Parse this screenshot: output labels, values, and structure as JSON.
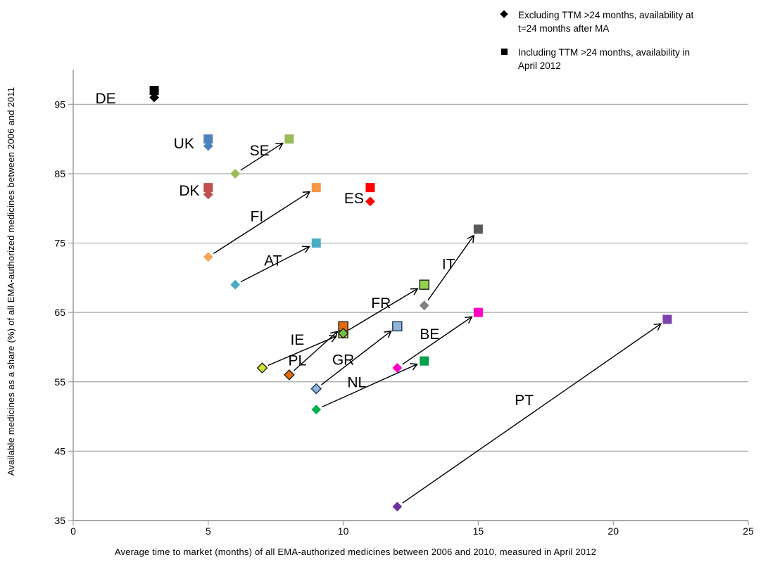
{
  "legend": {
    "items": [
      {
        "marker": "diamond",
        "line1": "Excluding TTM >24 months, availability at",
        "line2": "t=24 months after MA"
      },
      {
        "marker": "square",
        "line1": "Including TTM >24 months, availability in",
        "line2": "April 2012"
      }
    ]
  },
  "axes": {
    "x": {
      "title": "Average time to market (months) of all EMA-authorized medicines between 2006 and 2010, measured in April 2012"
    },
    "y": {
      "title": "Available medicines as a share (%) of all EMA-authorized medicines between 2006 and 2011"
    }
  },
  "colors": {
    "text": "#000000",
    "grid": "#A6A6A6",
    "axis": "#9B9B9B",
    "arrow": "#000000",
    "legend_marker": "#000000"
  },
  "chart_data": {
    "type": "scatter",
    "title": "",
    "xlabel": "Average time to market (months) of all EMA-authorized medicines between 2006 and 2010, measured in April 2012",
    "ylabel": "Available medicines as a share (%) of all EMA-authorized medicines between 2006 and 2011",
    "xlim": [
      0,
      25
    ],
    "ylim": [
      35,
      100
    ],
    "x_ticks": [
      0,
      5,
      10,
      15,
      20,
      25
    ],
    "y_ticks": [
      35,
      45,
      55,
      65,
      75,
      85,
      95
    ],
    "grid": "horizontal",
    "legend_position": "top-right",
    "series": [
      {
        "name": "Excluding TTM >24 months, availability at t=24 months after MA",
        "marker": "diamond"
      },
      {
        "name": "Including TTM >24 months, availability in April 2012",
        "marker": "square"
      }
    ],
    "countries": [
      {
        "code": "DE",
        "diamond": {
          "x": 3,
          "y": 96
        },
        "square": {
          "x": 3,
          "y": 97
        },
        "diamond_color": "#000000",
        "square_color": "#000000",
        "stroke": null,
        "arrow": false,
        "label": {
          "x": 1.2,
          "y": 95.8
        }
      },
      {
        "code": "UK",
        "diamond": {
          "x": 5,
          "y": 89
        },
        "square": {
          "x": 5,
          "y": 90
        },
        "diamond_color": "#4F81BD",
        "square_color": "#4F81BD",
        "stroke": null,
        "arrow": false,
        "label": {
          "x": 4.1,
          "y": 89.3
        }
      },
      {
        "code": "SE",
        "diamond": {
          "x": 6,
          "y": 85
        },
        "square": {
          "x": 8,
          "y": 90
        },
        "diamond_color": "#9BBB59",
        "square_color": "#9BBB59",
        "stroke": null,
        "arrow": true,
        "label": {
          "x": 6.9,
          "y": 88.3
        }
      },
      {
        "code": "DK",
        "diamond": {
          "x": 5,
          "y": 82
        },
        "square": {
          "x": 5,
          "y": 83
        },
        "diamond_color": "#C0504D",
        "square_color": "#C0504D",
        "stroke": null,
        "arrow": false,
        "label": {
          "x": 4.3,
          "y": 82.5
        }
      },
      {
        "code": "ES",
        "diamond": {
          "x": 11,
          "y": 81
        },
        "square": {
          "x": 11,
          "y": 83
        },
        "diamond_color": "#FF0000",
        "square_color": "#FF0000",
        "stroke": null,
        "arrow": false,
        "label": {
          "x": 10.4,
          "y": 81.4
        }
      },
      {
        "code": "FI",
        "diamond": {
          "x": 5,
          "y": 73
        },
        "square": {
          "x": 9,
          "y": 83
        },
        "diamond_color": "#F9A45B",
        "square_color": "#F79646",
        "stroke": null,
        "arrow": true,
        "label": {
          "x": 6.8,
          "y": 78.8
        }
      },
      {
        "code": "AT",
        "diamond": {
          "x": 6,
          "y": 69
        },
        "square": {
          "x": 9,
          "y": 75
        },
        "diamond_color": "#4BACC6",
        "square_color": "#4BACC6",
        "stroke": null,
        "arrow": true,
        "label": {
          "x": 7.4,
          "y": 72.4
        }
      },
      {
        "code": "IT",
        "diamond": {
          "x": 13,
          "y": 66
        },
        "square": {
          "x": 15,
          "y": 77
        },
        "diamond_color": "#808080",
        "square_color": "#595959",
        "stroke": null,
        "arrow": true,
        "label": {
          "x": 13.9,
          "y": 71.9
        }
      },
      {
        "code": "FR",
        "diamond": {
          "x": 10,
          "y": 62
        },
        "square": {
          "x": 13,
          "y": 69
        },
        "diamond_color": "#77C043",
        "square_color": "#92D050",
        "stroke": "#1F1F1F",
        "arrow": true,
        "label": {
          "x": 11.4,
          "y": 66.3
        }
      },
      {
        "code": "IE",
        "diamond": {
          "x": 7,
          "y": 57
        },
        "square": {
          "x": 10,
          "y": 62
        },
        "diamond_color": "#D2E32E",
        "square_color": "#D2E32E",
        "stroke": "#1F1F1F",
        "arrow": true,
        "label": {
          "x": 8.3,
          "y": 61.0
        }
      },
      {
        "code": "PL",
        "diamond": {
          "x": 8,
          "y": 56
        },
        "square": {
          "x": 10,
          "y": 63
        },
        "diamond_color": "#E36C09",
        "square_color": "#E36C09",
        "stroke": "#1F1F1F",
        "arrow": true,
        "label": {
          "x": 8.3,
          "y": 58.0
        }
      },
      {
        "code": "GR",
        "diamond": {
          "x": 9,
          "y": 54
        },
        "square": {
          "x": 12,
          "y": 63
        },
        "diamond_color": "#95B3D7",
        "square_color": "#95B3D7",
        "stroke": "#17375E",
        "arrow": true,
        "label": {
          "x": 10.0,
          "y": 58.1
        }
      },
      {
        "code": "BE",
        "diamond": {
          "x": 12,
          "y": 57
        },
        "square": {
          "x": 15,
          "y": 65
        },
        "diamond_color": "#FF00C4",
        "square_color": "#FF00C4",
        "stroke": null,
        "arrow": true,
        "label": {
          "x": 13.2,
          "y": 61.8
        }
      },
      {
        "code": "NL",
        "diamond": {
          "x": 9,
          "y": 51
        },
        "square": {
          "x": 13,
          "y": 58
        },
        "diamond_color": "#00B050",
        "square_color": "#00A24C",
        "stroke": null,
        "arrow": true,
        "label": {
          "x": 10.5,
          "y": 54.9
        }
      },
      {
        "code": "PT",
        "diamond": {
          "x": 12,
          "y": 37
        },
        "square": {
          "x": 22,
          "y": 64
        },
        "diamond_color": "#7030A0",
        "square_color": "#7C44AC",
        "stroke": null,
        "arrow": true,
        "label": {
          "x": 16.7,
          "y": 52.3
        }
      }
    ]
  }
}
